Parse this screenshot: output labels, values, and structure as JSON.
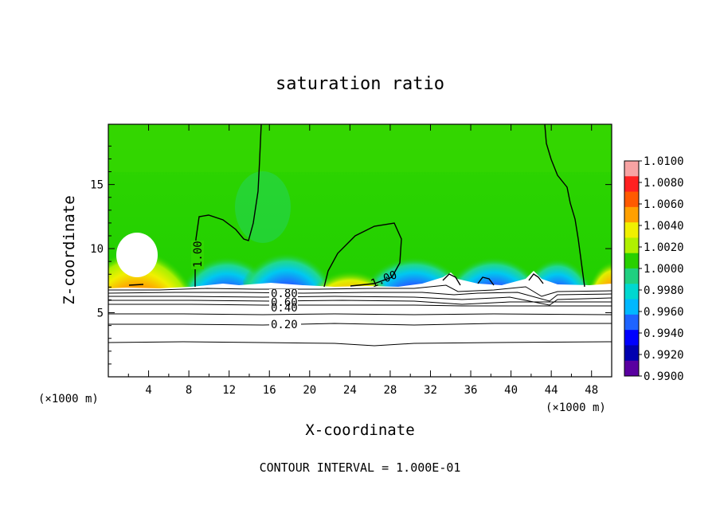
{
  "chart_data": {
    "type": "heatmap",
    "title": "saturation ratio",
    "xlabel": "X-coordinate",
    "ylabel": "Z-coordinate",
    "x_unit": "(×1000 m)",
    "x_unit_right": "(×1000 m)",
    "xlim": [
      0,
      50
    ],
    "ylim": [
      0,
      19.7
    ],
    "x_ticks": [
      4,
      8,
      12,
      16,
      20,
      24,
      28,
      32,
      36,
      40,
      44,
      48
    ],
    "y_ticks": [
      5,
      10,
      15
    ],
    "colorbar": {
      "min": 0.99,
      "max": 1.01,
      "tick_labels": [
        "1.0100",
        "1.0080",
        "1.0060",
        "1.0040",
        "1.0020",
        "1.0000",
        "0.9980",
        "0.9960",
        "0.9940",
        "0.9920",
        "0.9900"
      ],
      "colors": [
        "#f7a3a3",
        "#ff2020",
        "#ff5a00",
        "#ffa000",
        "#f0f000",
        "#b0f000",
        "#28d000",
        "#20d080",
        "#00d8d0",
        "#00b8ff",
        "#1e64ff",
        "#0000ff",
        "#0000b0",
        "#5a00a0"
      ]
    },
    "contour_labels": [
      "1.00",
      "1.00",
      "0.80",
      "0.60",
      "0.40",
      "0.20"
    ],
    "contour_levels": [
      0.2,
      0.3,
      0.4,
      0.5,
      0.6,
      0.7,
      0.8,
      0.9,
      1.0
    ],
    "contour_interval_text": "CONTOUR INTERVAL = 1.000E-01"
  }
}
